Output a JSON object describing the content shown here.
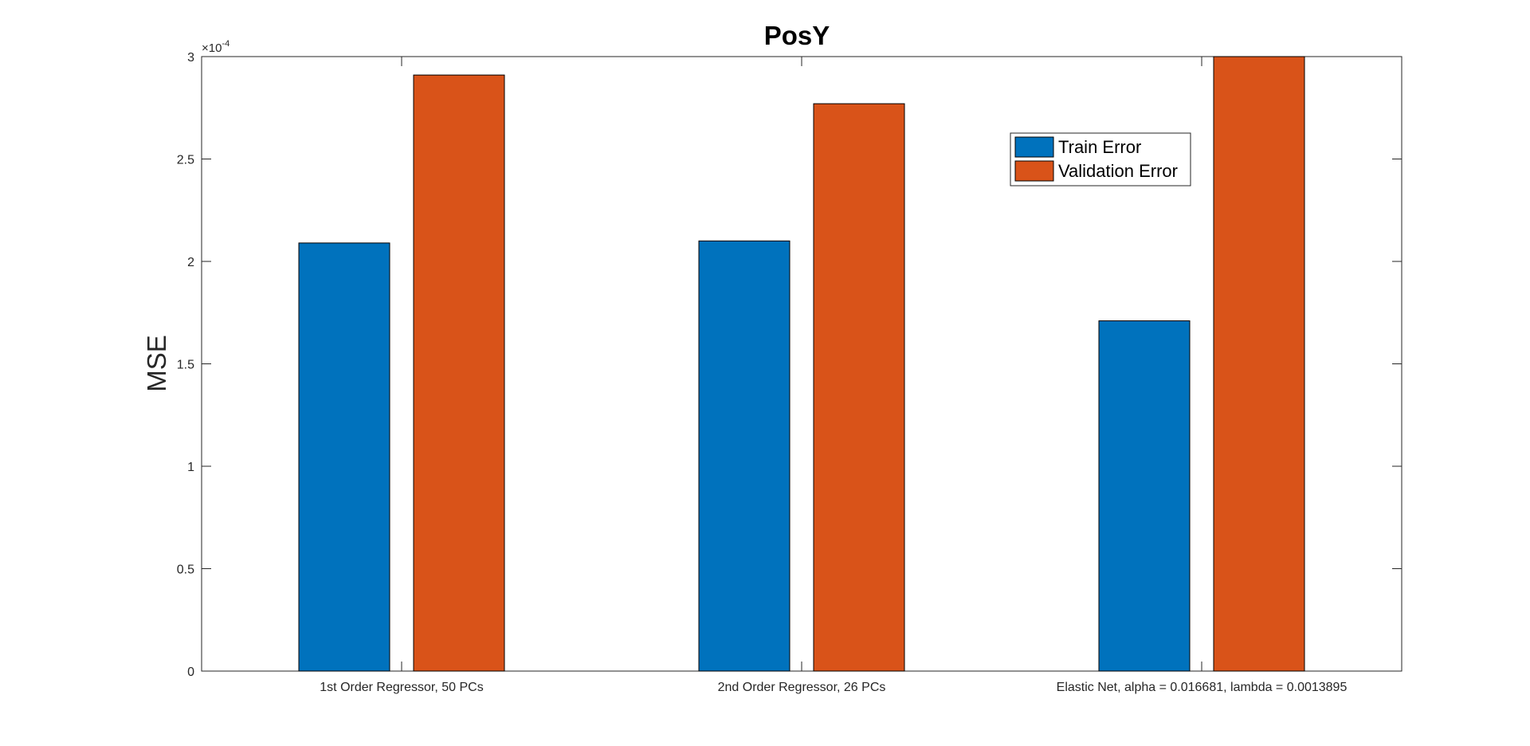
{
  "chart_data": {
    "type": "bar",
    "title": "PosY",
    "xlabel": "",
    "ylabel": "MSE",
    "y_exponent_label": "×10",
    "y_exponent_power": "-4",
    "y_scale_factor": 0.0001,
    "ylim": [
      0,
      3
    ],
    "yticks": [
      0,
      0.5,
      1,
      1.5,
      2,
      2.5,
      3
    ],
    "ytick_labels": [
      "0",
      "0.5",
      "1",
      "1.5",
      "2",
      "2.5",
      "3"
    ],
    "categories": [
      "1st Order Regressor, 50 PCs",
      "2nd Order Regressor, 26 PCs",
      "Elastic Net, alpha = 0.016681, lambda = 0.0013895"
    ],
    "series": [
      {
        "name": "Train Error",
        "color": "#0072BD",
        "values": [
          2.09,
          2.1,
          1.71
        ]
      },
      {
        "name": "Validation Error",
        "color": "#D95319",
        "values": [
          2.91,
          2.77,
          3.0
        ]
      }
    ],
    "legend_position": "top-right",
    "grid": false
  }
}
